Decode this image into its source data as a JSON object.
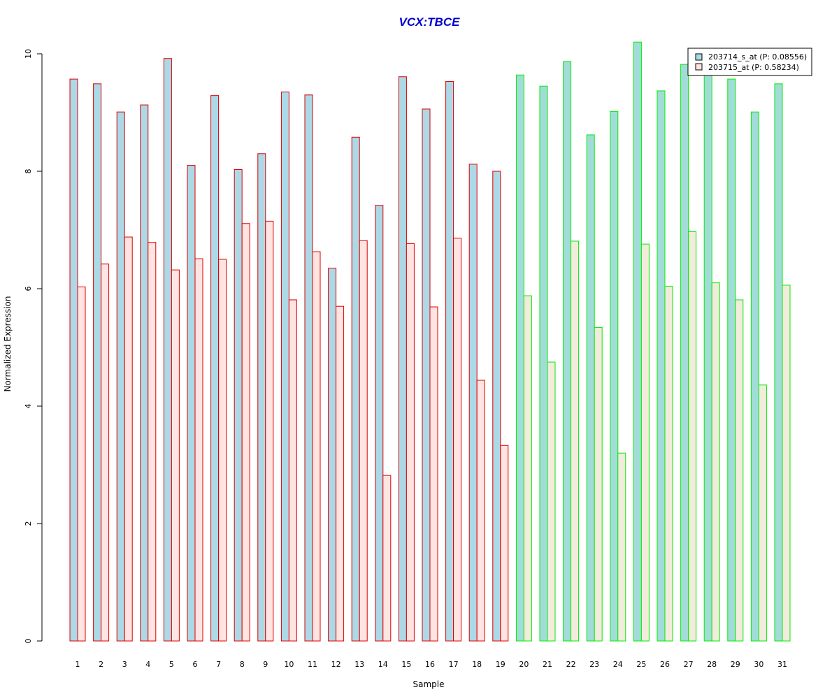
{
  "chart_data": {
    "type": "bar",
    "title": "VCX:TBCE",
    "xlabel": "Sample",
    "ylabel": "Normalized Expression",
    "ylim": [
      0,
      10
    ],
    "yticks": [
      0,
      2,
      4,
      6,
      8,
      10
    ],
    "categories": [
      "1",
      "2",
      "3",
      "4",
      "5",
      "6",
      "7",
      "8",
      "9",
      "10",
      "11",
      "12",
      "13",
      "14",
      "15",
      "16",
      "17",
      "18",
      "19",
      "20",
      "21",
      "22",
      "23",
      "24",
      "25",
      "26",
      "27",
      "28",
      "29",
      "30",
      "31"
    ],
    "series": [
      {
        "name": "203714_s_at (P: 0.08556)",
        "values": [
          9.57,
          9.49,
          9.01,
          9.13,
          9.92,
          8.1,
          9.29,
          8.03,
          8.3,
          9.35,
          9.3,
          6.35,
          8.58,
          7.42,
          9.61,
          9.06,
          9.53,
          8.12,
          8.0,
          9.64,
          9.45,
          9.87,
          8.62,
          9.02,
          10.2,
          9.37,
          9.82,
          9.68,
          9.57,
          9.01,
          9.49
        ]
      },
      {
        "name": "203715_at (P: 0.58234)",
        "values": [
          6.03,
          6.42,
          6.88,
          6.79,
          6.32,
          6.51,
          6.5,
          7.11,
          7.15,
          5.81,
          6.63,
          5.7,
          6.82,
          2.82,
          6.77,
          5.69,
          6.86,
          4.44,
          3.33,
          5.88,
          4.75,
          6.81,
          5.34,
          3.2,
          6.76,
          6.04,
          6.97,
          6.1,
          5.81,
          4.36,
          6.06
        ]
      }
    ],
    "groups": [
      {
        "samples": "1-19",
        "border_color": "#dd0000",
        "fill_a": "#add8e6",
        "fill_b": "#ffe4e1"
      },
      {
        "samples": "20-31",
        "border_color": "#00ee00",
        "fill_a": "#a2dcd8",
        "fill_b": "#f3ebdc"
      }
    ],
    "title_color": "#0000cc",
    "legend": {
      "placement": "top-right",
      "colors": [
        "#add8e6",
        "#ffe4e1"
      ]
    },
    "grid": false
  }
}
